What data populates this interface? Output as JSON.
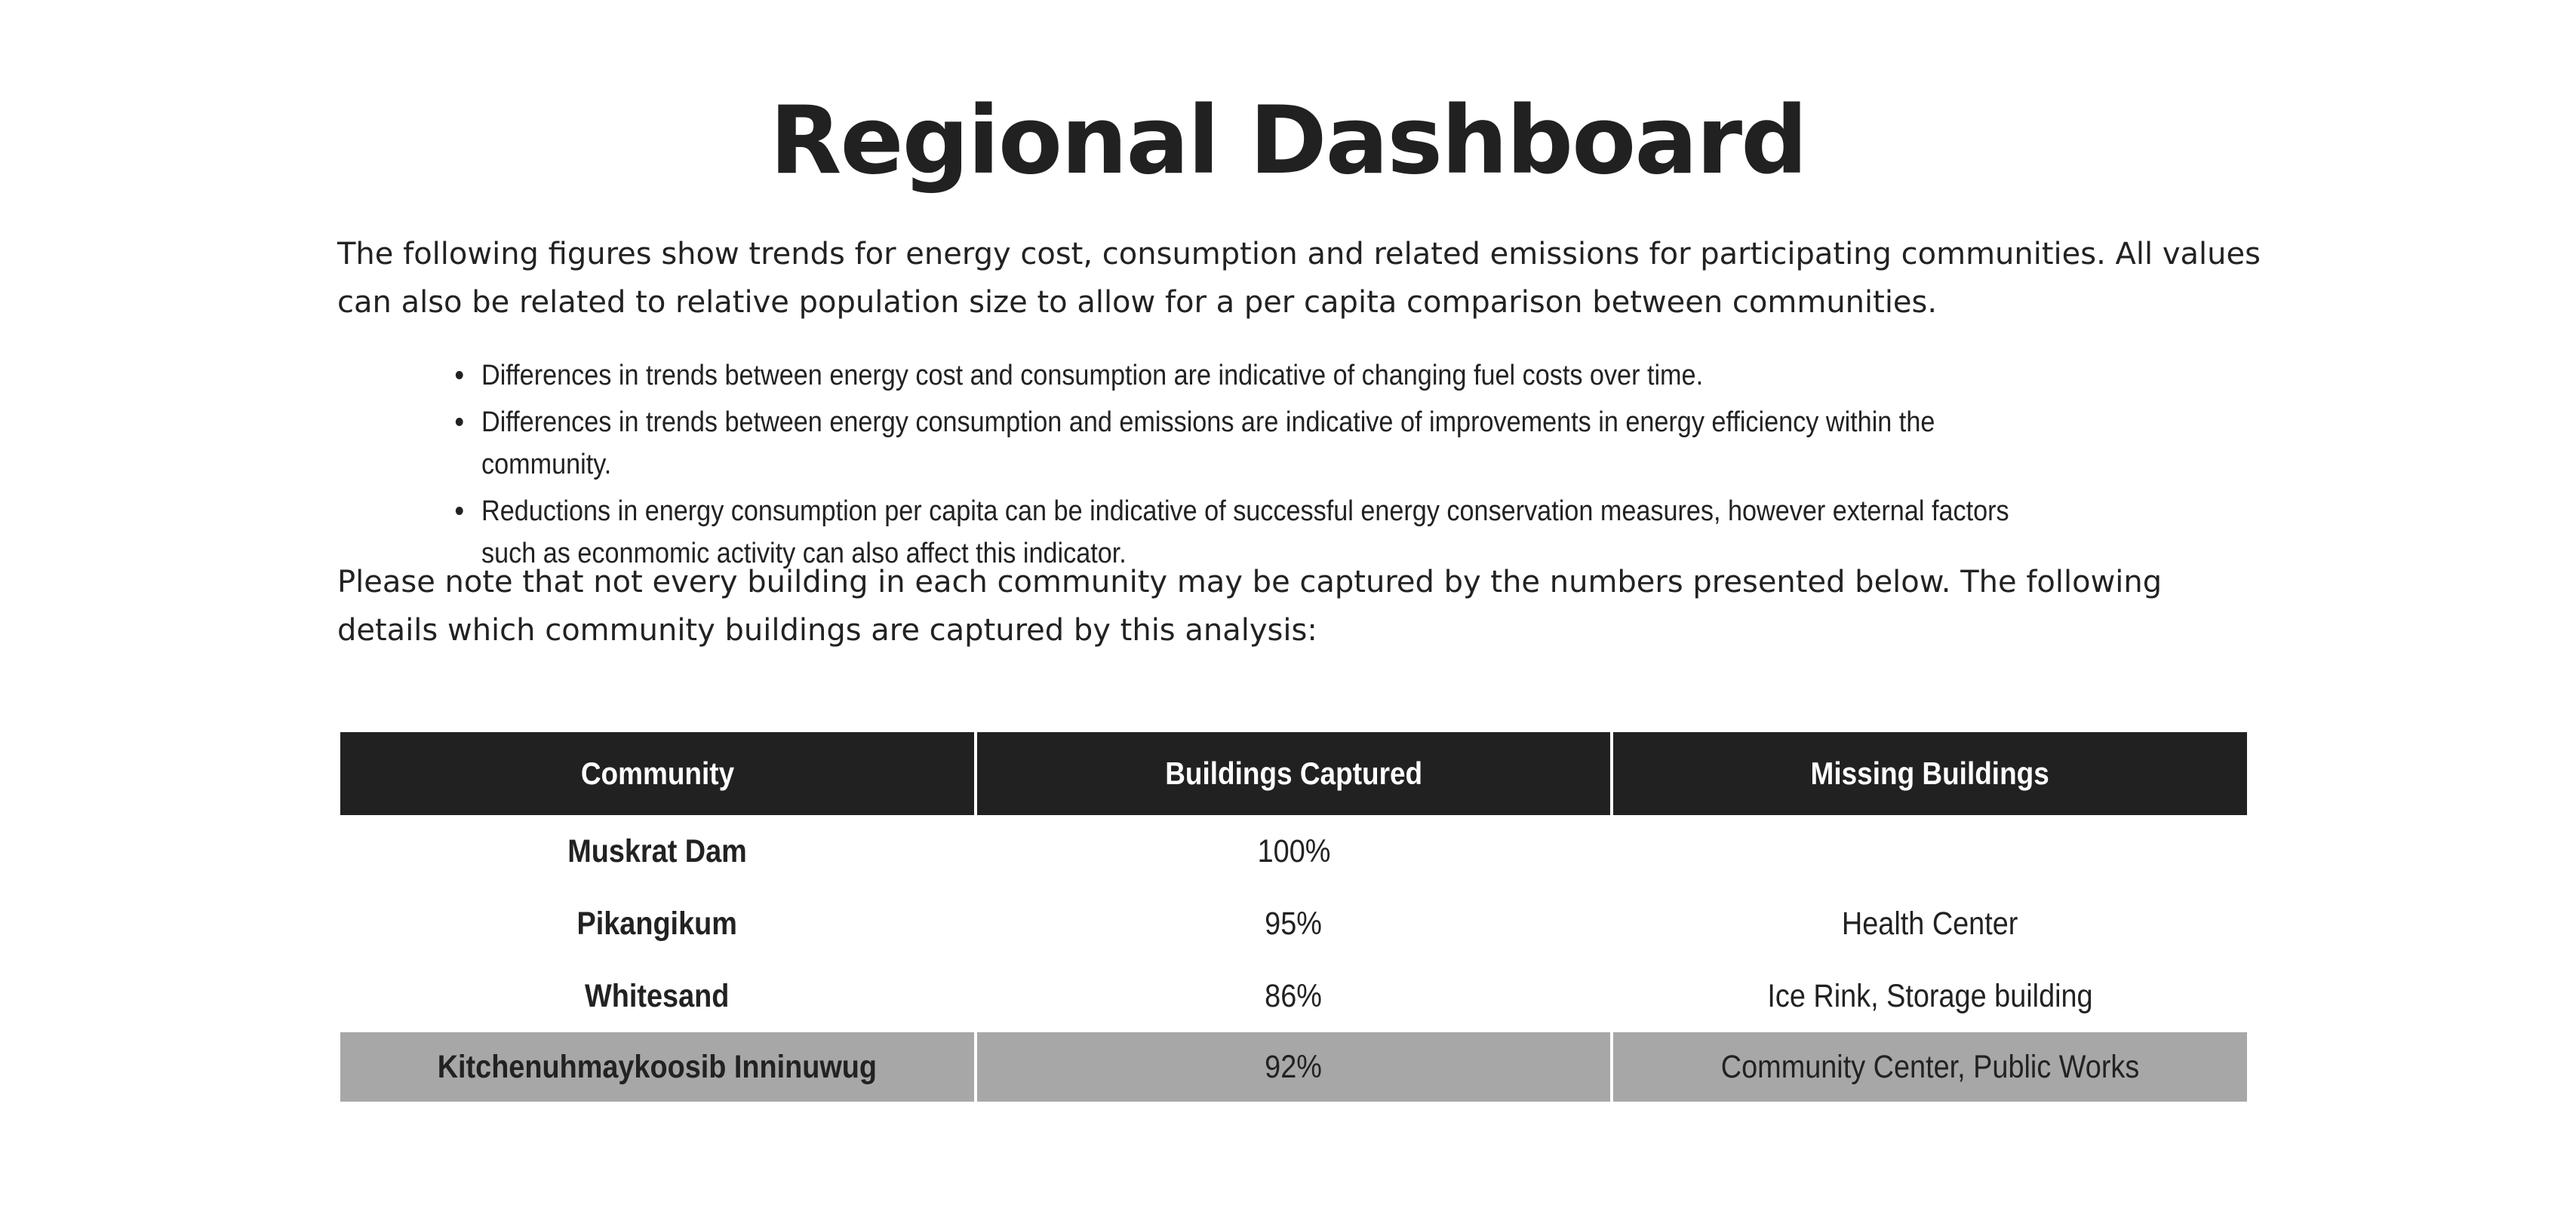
{
  "page": {
    "title": "Regional Dashboard",
    "intro": "The following figures show trends for energy cost, consumption and related emissions for participating communities. All values can also be related to relative population size to allow for a per capita comparison between communities.",
    "bullets": [
      "Differences in trends between energy cost and consumption are indicative of changing fuel costs over time.",
      "Differences in trends between energy consumption and emissions are indicative of improvements in energy efficiency within the community.",
      "Reductions in energy consumption per capita can be indicative of successful energy conservation measures, however external factors such as econmomic activity can also affect this indicator."
    ],
    "note": "Please note that not every building in each community may be captured by the numbers presented below. The following details which community buildings are captured by this analysis:"
  },
  "table": {
    "headers": [
      "Community",
      "Buildings Captured",
      "Missing Buildings"
    ],
    "rows": [
      {
        "community": "Muskrat Dam",
        "captured": "100%",
        "missing": ""
      },
      {
        "community": "Pikangikum",
        "captured": "95%",
        "missing": "Health Center"
      },
      {
        "community": "Whitesand",
        "captured": "86%",
        "missing": "Ice Rink, Storage building"
      },
      {
        "community": "Kitchenuhmaykoosib Inninuwug",
        "captured": "92%",
        "missing": "Community Center, Public Works"
      }
    ]
  },
  "colors": {
    "header_bg": "#212121",
    "highlight_row_bg": "#a6a7a6",
    "text": "#222222"
  }
}
